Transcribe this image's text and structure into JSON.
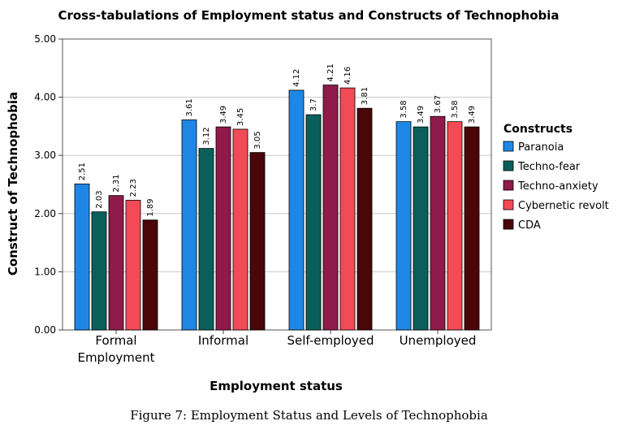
{
  "chart_data": {
    "type": "bar",
    "title": "Cross-tabulations of Employment status and Constructs of Technophobia",
    "xlabel": "Employment status",
    "ylabel": "Construct of Technophobia",
    "ylim": [
      0,
      5
    ],
    "yticks": [
      "0.00",
      "1.00",
      "2.00",
      "3.00",
      "4.00",
      "5.00"
    ],
    "grid": true,
    "legend_title": "Constructs",
    "legend_position": "right",
    "categories": [
      [
        "Formal",
        "Employment"
      ],
      [
        "Informal"
      ],
      [
        "Self-employed"
      ],
      [
        "Unemployed"
      ]
    ],
    "series": [
      {
        "name": "Paranoia",
        "color": "#1e87e5",
        "values": [
          2.51,
          3.61,
          4.12,
          3.58
        ],
        "labels": [
          "2.51",
          "3.61",
          "4.12",
          "3.58"
        ]
      },
      {
        "name": "Techno-fear",
        "color": "#0b5f5b",
        "values": [
          2.03,
          3.12,
          3.7,
          3.49
        ],
        "labels": [
          "2.03",
          "3.12",
          "3.7",
          "3.49"
        ]
      },
      {
        "name": "Techno-anxiety",
        "color": "#8e1b4a",
        "values": [
          2.31,
          3.49,
          4.21,
          3.67
        ],
        "labels": [
          "2.31",
          "3.49",
          "4.21",
          "3.67"
        ]
      },
      {
        "name": "Cybernetic revolt",
        "color": "#f24b56",
        "values": [
          2.23,
          3.45,
          4.16,
          3.58
        ],
        "labels": [
          "2.23",
          "3.45",
          "4.16",
          "3.58"
        ]
      },
      {
        "name": "CDA",
        "color": "#4a0609",
        "values": [
          1.89,
          3.05,
          3.81,
          3.49
        ],
        "labels": [
          "1.89",
          "3.05",
          "3.81",
          "3.49"
        ]
      }
    ]
  },
  "caption": "Figure 7:  Employment Status and Levels of Technophobia"
}
